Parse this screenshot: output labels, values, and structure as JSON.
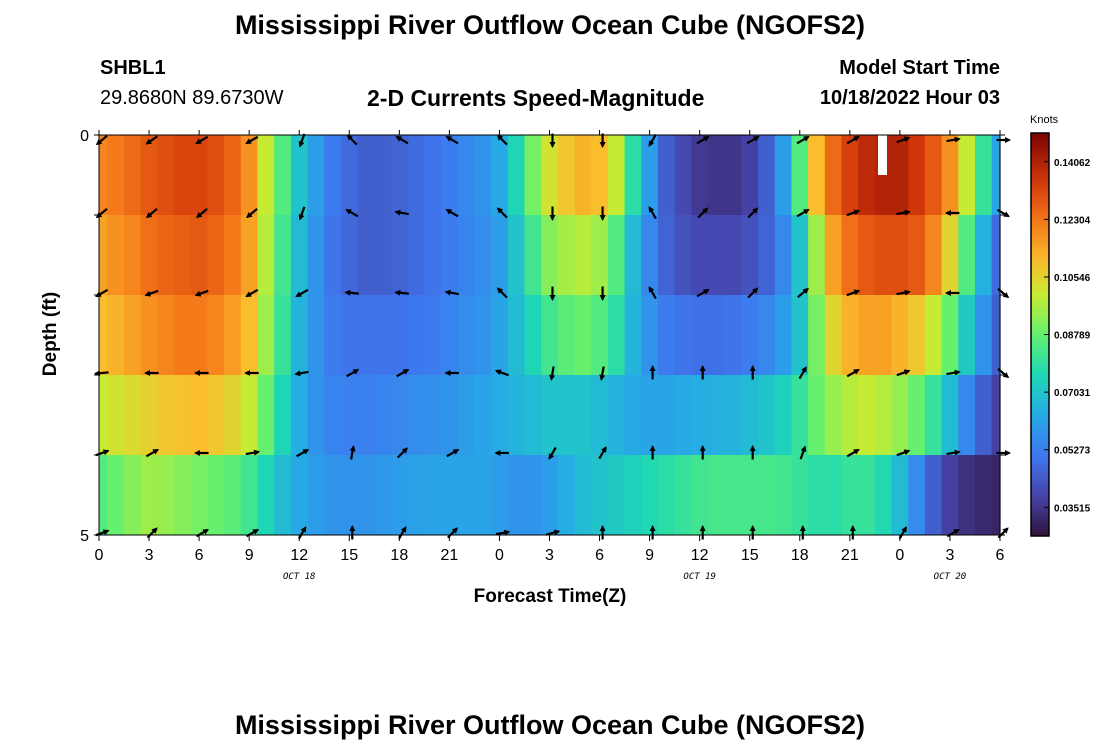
{
  "title_top": "Mississippi River Outflow Ocean Cube (NGOFS2)",
  "title_bottom": "Mississippi River Outflow Ocean Cube (NGOFS2)",
  "station": {
    "id": "SHBL1",
    "coords": "29.8680N  89.6730W"
  },
  "model_start": {
    "label": "Model Start Time",
    "value": "10/18/2022 Hour 03"
  },
  "chart_data": {
    "type": "heatmap",
    "title": "2-D Currents Speed-Magnitude",
    "xlabel": "Forecast Time(Z)",
    "ylabel": "Depth (ft)",
    "x_hours": [
      0,
      3,
      6,
      9,
      12,
      15,
      18,
      21,
      24,
      27,
      30,
      33,
      36,
      39,
      42,
      45,
      48,
      51,
      54
    ],
    "x_tick_labels": [
      "0",
      "3",
      "6",
      "9",
      "12",
      "15",
      "18",
      "21",
      "0",
      "3",
      "6",
      "9",
      "12",
      "15",
      "18",
      "21",
      "0",
      "3",
      "6"
    ],
    "x_date_labels": [
      {
        "hour": 12,
        "label": "OCT 18"
      },
      {
        "hour": 36,
        "label": "OCT 19"
      },
      {
        "hour": 51,
        "label": "OCT 20"
      }
    ],
    "y_tick_labels": [
      "0",
      "",
      "",
      "",
      "",
      "5"
    ],
    "ylim": [
      0,
      5
    ],
    "depth_rows": 5,
    "time_profile_hours": [
      0,
      1,
      2,
      3,
      4,
      5,
      6,
      7,
      8,
      9,
      10,
      11,
      12,
      13,
      14,
      15,
      16,
      17,
      18,
      19,
      20,
      21,
      22,
      23,
      24,
      25,
      26,
      27,
      28,
      29,
      30,
      31,
      32,
      33,
      34,
      35,
      36,
      37,
      38,
      39,
      40,
      41,
      42,
      43,
      44,
      45,
      46,
      47,
      48,
      49,
      50,
      51,
      52,
      53,
      54
    ],
    "speed_knots": [
      [
        0.12,
        0.122,
        0.125,
        0.128,
        0.13,
        0.132,
        0.132,
        0.13,
        0.126,
        0.118,
        0.1,
        0.085,
        0.07,
        0.06,
        0.052,
        0.048,
        0.045,
        0.045,
        0.046,
        0.048,
        0.05,
        0.052,
        0.055,
        0.058,
        0.063,
        0.075,
        0.09,
        0.102,
        0.108,
        0.112,
        0.11,
        0.1,
        0.078,
        0.06,
        0.045,
        0.04,
        0.036,
        0.035,
        0.035,
        0.038,
        0.045,
        0.06,
        0.085,
        0.11,
        0.125,
        0.133,
        0.138,
        0.14,
        0.14,
        0.135,
        0.128,
        0.118,
        0.1,
        0.08,
        0.062
      ],
      [
        0.115,
        0.118,
        0.12,
        0.124,
        0.126,
        0.127,
        0.128,
        0.126,
        0.122,
        0.115,
        0.098,
        0.082,
        0.068,
        0.058,
        0.05,
        0.047,
        0.045,
        0.045,
        0.046,
        0.048,
        0.05,
        0.052,
        0.054,
        0.056,
        0.06,
        0.07,
        0.082,
        0.092,
        0.096,
        0.098,
        0.095,
        0.085,
        0.068,
        0.055,
        0.046,
        0.042,
        0.04,
        0.04,
        0.04,
        0.042,
        0.046,
        0.055,
        0.07,
        0.095,
        0.115,
        0.124,
        0.128,
        0.13,
        0.13,
        0.128,
        0.12,
        0.105,
        0.085,
        0.065,
        0.048
      ],
      [
        0.11,
        0.112,
        0.115,
        0.118,
        0.12,
        0.122,
        0.122,
        0.12,
        0.116,
        0.11,
        0.095,
        0.08,
        0.066,
        0.058,
        0.052,
        0.05,
        0.05,
        0.05,
        0.05,
        0.051,
        0.052,
        0.054,
        0.056,
        0.058,
        0.062,
        0.068,
        0.075,
        0.082,
        0.086,
        0.088,
        0.085,
        0.078,
        0.066,
        0.058,
        0.052,
        0.05,
        0.049,
        0.049,
        0.05,
        0.052,
        0.055,
        0.06,
        0.07,
        0.09,
        0.105,
        0.112,
        0.115,
        0.115,
        0.112,
        0.108,
        0.1,
        0.088,
        0.072,
        0.058,
        0.045
      ],
      [
        0.1,
        0.102,
        0.104,
        0.106,
        0.108,
        0.109,
        0.11,
        0.108,
        0.105,
        0.1,
        0.088,
        0.075,
        0.064,
        0.058,
        0.054,
        0.053,
        0.053,
        0.054,
        0.055,
        0.056,
        0.057,
        0.058,
        0.06,
        0.062,
        0.064,
        0.066,
        0.068,
        0.07,
        0.07,
        0.07,
        0.068,
        0.066,
        0.063,
        0.062,
        0.062,
        0.063,
        0.064,
        0.065,
        0.066,
        0.068,
        0.07,
        0.074,
        0.08,
        0.088,
        0.094,
        0.098,
        0.1,
        0.098,
        0.094,
        0.088,
        0.08,
        0.068,
        0.055,
        0.045,
        0.038
      ],
      [
        0.085,
        0.088,
        0.092,
        0.095,
        0.094,
        0.092,
        0.09,
        0.088,
        0.086,
        0.082,
        0.075,
        0.068,
        0.063,
        0.06,
        0.058,
        0.058,
        0.058,
        0.059,
        0.06,
        0.061,
        0.062,
        0.062,
        0.062,
        0.062,
        0.06,
        0.058,
        0.058,
        0.06,
        0.064,
        0.068,
        0.07,
        0.072,
        0.074,
        0.076,
        0.078,
        0.08,
        0.082,
        0.083,
        0.083,
        0.083,
        0.083,
        0.082,
        0.08,
        0.078,
        0.078,
        0.08,
        0.08,
        0.076,
        0.068,
        0.056,
        0.045,
        0.038,
        0.034,
        0.032,
        0.031
      ]
    ],
    "arrow_angles_deg": [
      [
        140,
        145,
        150,
        150,
        110,
        -135,
        -150,
        -150,
        -135,
        90,
        90,
        120,
        -30,
        -30,
        -30,
        -30,
        -20,
        -10,
        0
      ],
      [
        140,
        140,
        140,
        140,
        110,
        -150,
        -170,
        -150,
        -135,
        90,
        90,
        -120,
        -45,
        -45,
        -30,
        -20,
        -10,
        180,
        30
      ],
      [
        150,
        160,
        160,
        150,
        150,
        -175,
        -175,
        -170,
        -135,
        90,
        90,
        -120,
        -30,
        -45,
        -40,
        -20,
        -10,
        180,
        40
      ],
      [
        175,
        180,
        180,
        180,
        170,
        -30,
        -30,
        180,
        -160,
        100,
        100,
        -90,
        -90,
        -90,
        -60,
        -30,
        -20,
        -10,
        40
      ],
      [
        -20,
        -30,
        180,
        -10,
        -30,
        -80,
        -45,
        -30,
        180,
        120,
        -60,
        -90,
        -90,
        -90,
        -70,
        -30,
        -20,
        -10,
        0
      ],
      [
        -20,
        -45,
        -30,
        -30,
        -60,
        -90,
        -60,
        -45,
        -10,
        -15,
        -90,
        -90,
        -90,
        -90,
        -90,
        -90,
        -60,
        -30,
        -45
      ]
    ],
    "colorbar": {
      "unit": "Knots",
      "min": 0.0264,
      "max": 0.1494,
      "tick_values": [
        0.14062,
        0.12304,
        0.10546,
        0.08789,
        0.07031,
        0.05273,
        0.03515
      ],
      "tick_labels": [
        "0.14062",
        "0.12304",
        "0.10546",
        "0.08789",
        "0.07031",
        "0.05273",
        "0.03515"
      ]
    }
  }
}
